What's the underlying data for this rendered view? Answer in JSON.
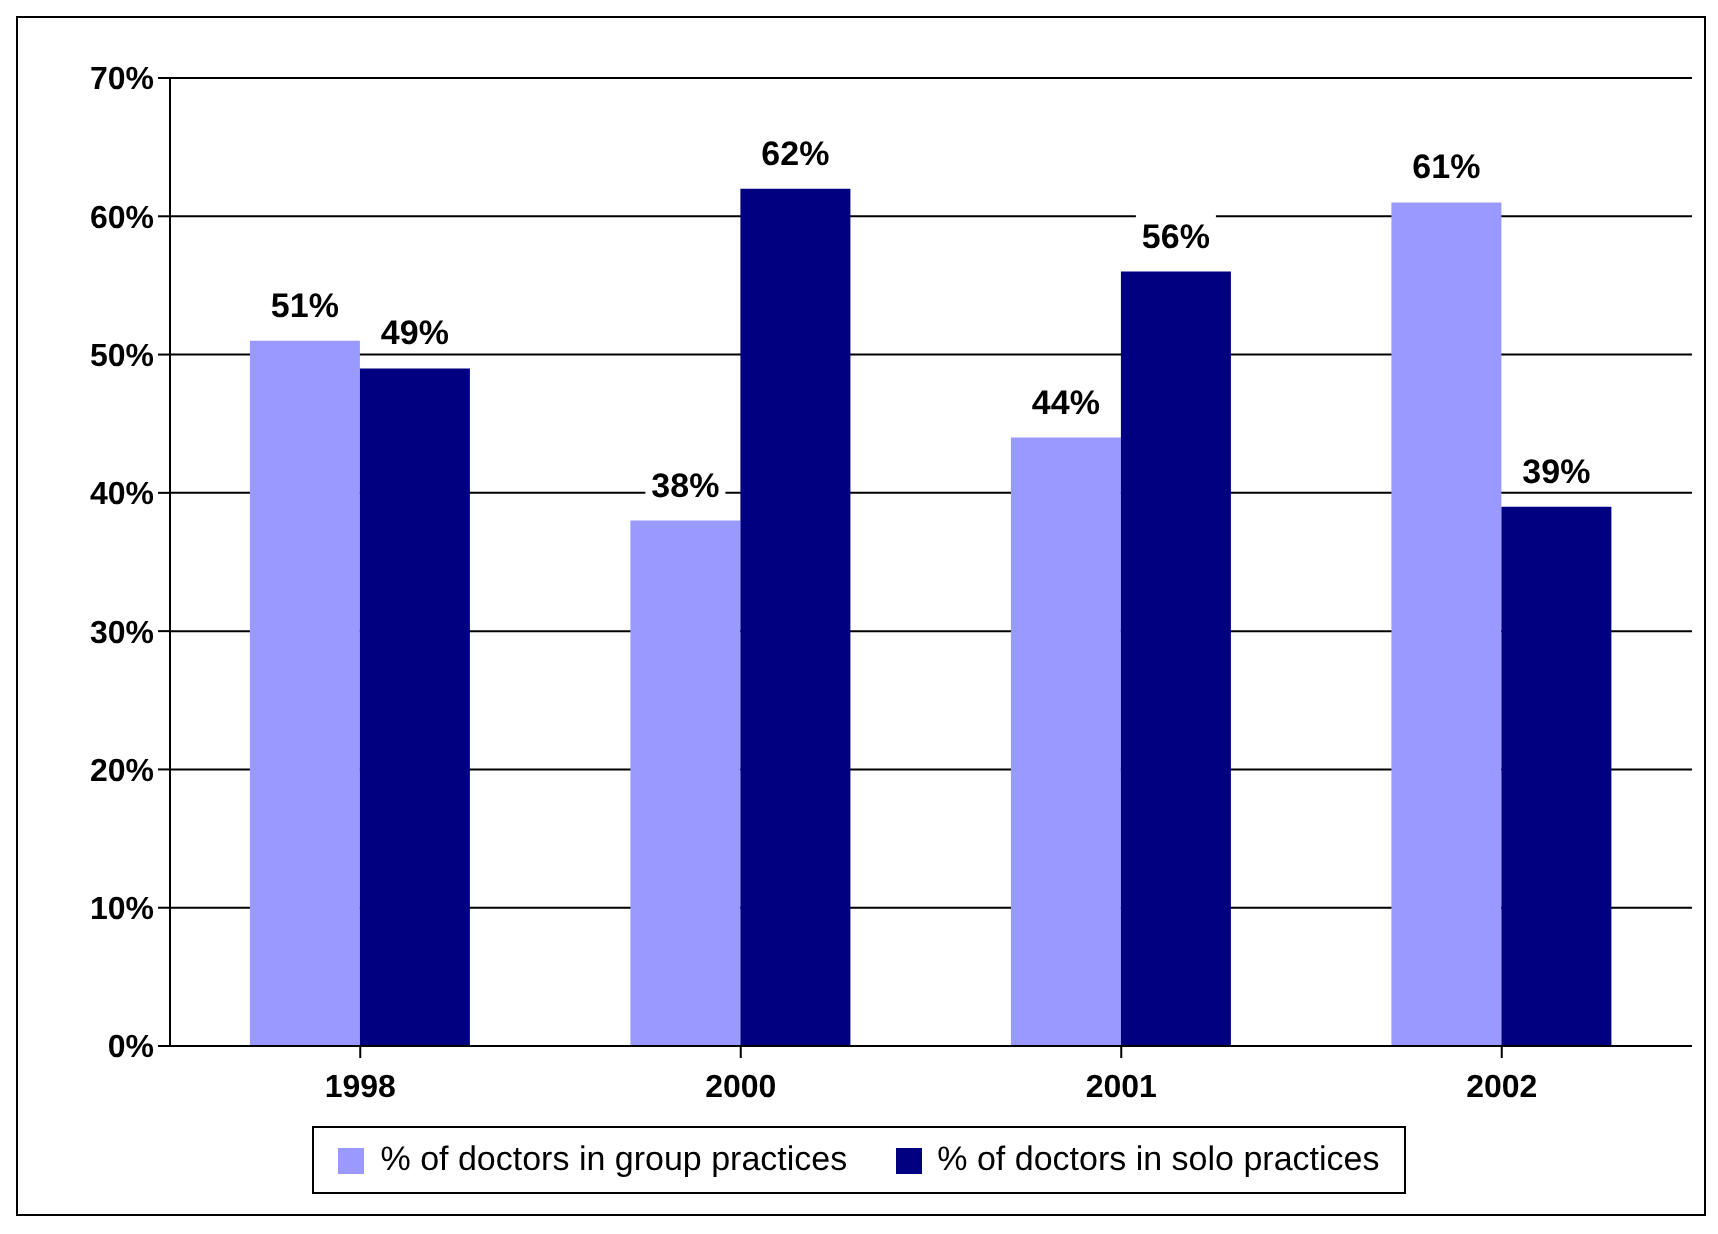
{
  "chart_data": {
    "type": "bar",
    "categories": [
      "1998",
      "2000",
      "2001",
      "2002"
    ],
    "series": [
      {
        "name": "% of doctors in group practices",
        "color": "#9999ff",
        "values": [
          51,
          38,
          44,
          61
        ],
        "value_labels": [
          "51%",
          "38%",
          "44%",
          "61%"
        ]
      },
      {
        "name": "% of doctors in solo practices",
        "color": "#000080",
        "values": [
          49,
          62,
          56,
          39
        ],
        "value_labels": [
          "49%",
          "62%",
          "56%",
          "39%"
        ]
      }
    ],
    "ylim": [
      0,
      70
    ],
    "yticks": [
      {
        "value": 0,
        "label": "0%"
      },
      {
        "value": 10,
        "label": "10%"
      },
      {
        "value": 20,
        "label": "20%"
      },
      {
        "value": 30,
        "label": "30%"
      },
      {
        "value": 40,
        "label": "40%"
      },
      {
        "value": 50,
        "label": "50%"
      },
      {
        "value": 60,
        "label": "60%"
      },
      {
        "value": 70,
        "label": "70%"
      }
    ],
    "grid": "y",
    "legend": "bottom"
  }
}
